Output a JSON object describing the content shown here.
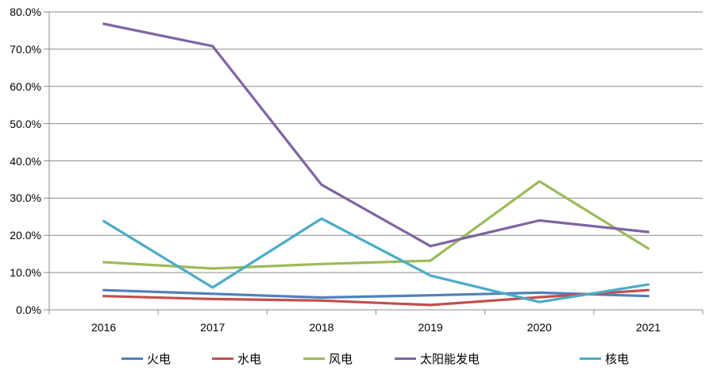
{
  "chart_data": {
    "type": "line",
    "title": "",
    "xlabel": "",
    "ylabel": "",
    "categories": [
      "2016",
      "2017",
      "2018",
      "2019",
      "2020",
      "2021"
    ],
    "series": [
      {
        "id": "thermal",
        "name": "火电",
        "color": "#4F81BD",
        "values": [
          5.3,
          4.3,
          3.3,
          3.9,
          4.6,
          3.7
        ]
      },
      {
        "id": "hydro",
        "name": "水电",
        "color": "#C0504D",
        "values": [
          3.7,
          2.9,
          2.5,
          1.3,
          3.4,
          5.3
        ]
      },
      {
        "id": "wind",
        "name": "风电",
        "color": "#9BBB59",
        "values": [
          12.8,
          11.1,
          12.3,
          13.2,
          34.5,
          16.5
        ]
      },
      {
        "id": "solar",
        "name": "太阳能发电",
        "color": "#8064A2",
        "values": [
          76.8,
          70.8,
          33.6,
          17.1,
          24.0,
          20.9
        ]
      },
      {
        "id": "nuclear",
        "name": "核电",
        "color": "#4BACC6",
        "values": [
          23.8,
          6.0,
          24.5,
          9.2,
          2.1,
          6.8
        ]
      }
    ],
    "y_ticks": [
      "0.0%",
      "10.0%",
      "20.0%",
      "30.0%",
      "40.0%",
      "50.0%",
      "60.0%",
      "70.0%",
      "80.0%"
    ],
    "ylim": [
      0,
      80
    ],
    "grid": true,
    "legend_position": "bottom",
    "colors": {
      "grid_line": "#8C8C8C",
      "axis_line": "#8C8C8C",
      "text": "#000000",
      "background": "#FFFFFF"
    }
  }
}
